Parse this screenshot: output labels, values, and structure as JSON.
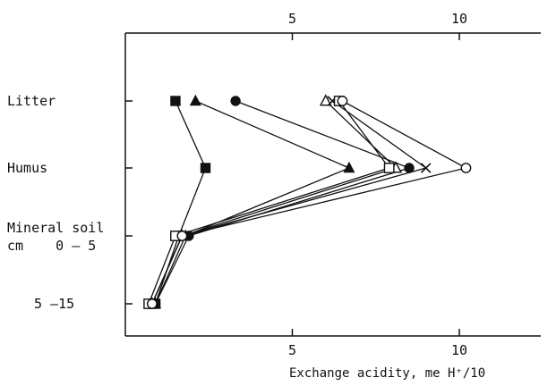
{
  "chart_data": {
    "type": "line",
    "xlabel": "Exchange acidity, me H⁺/10",
    "x_ticks_bottom": [
      "5",
      "10"
    ],
    "x_ticks_top": [
      "5",
      "10"
    ],
    "xlim": [
      0,
      12.4
    ],
    "categories": [
      "Litter",
      "Humus",
      "Mineral soil cm 0 – 5",
      "5 –15"
    ],
    "y_tick_labels": [
      {
        "lines": [
          "Litter"
        ]
      },
      {
        "lines": [
          "Humus"
        ]
      },
      {
        "lines": [
          "Mineral soil",
          "cm    0 – 5"
        ]
      },
      {
        "lines": [
          "5 –15"
        ]
      }
    ],
    "series": [
      {
        "marker": "filled-square",
        "values": [
          1.5,
          2.4,
          1.6,
          0.9
        ]
      },
      {
        "marker": "filled-triangle",
        "values": [
          2.1,
          6.7,
          1.8,
          0.9
        ]
      },
      {
        "marker": "filled-circle",
        "values": [
          3.3,
          8.5,
          1.9,
          0.9
        ]
      },
      {
        "marker": "open-triangle",
        "values": [
          6.0,
          8.1,
          1.7,
          0.8
        ]
      },
      {
        "marker": "cross",
        "values": [
          6.2,
          9.0,
          1.7,
          0.8
        ]
      },
      {
        "marker": "open-square",
        "values": [
          6.4,
          7.9,
          1.5,
          0.7
        ]
      },
      {
        "marker": "open-circle",
        "values": [
          6.5,
          10.2,
          1.7,
          0.8
        ]
      }
    ]
  }
}
